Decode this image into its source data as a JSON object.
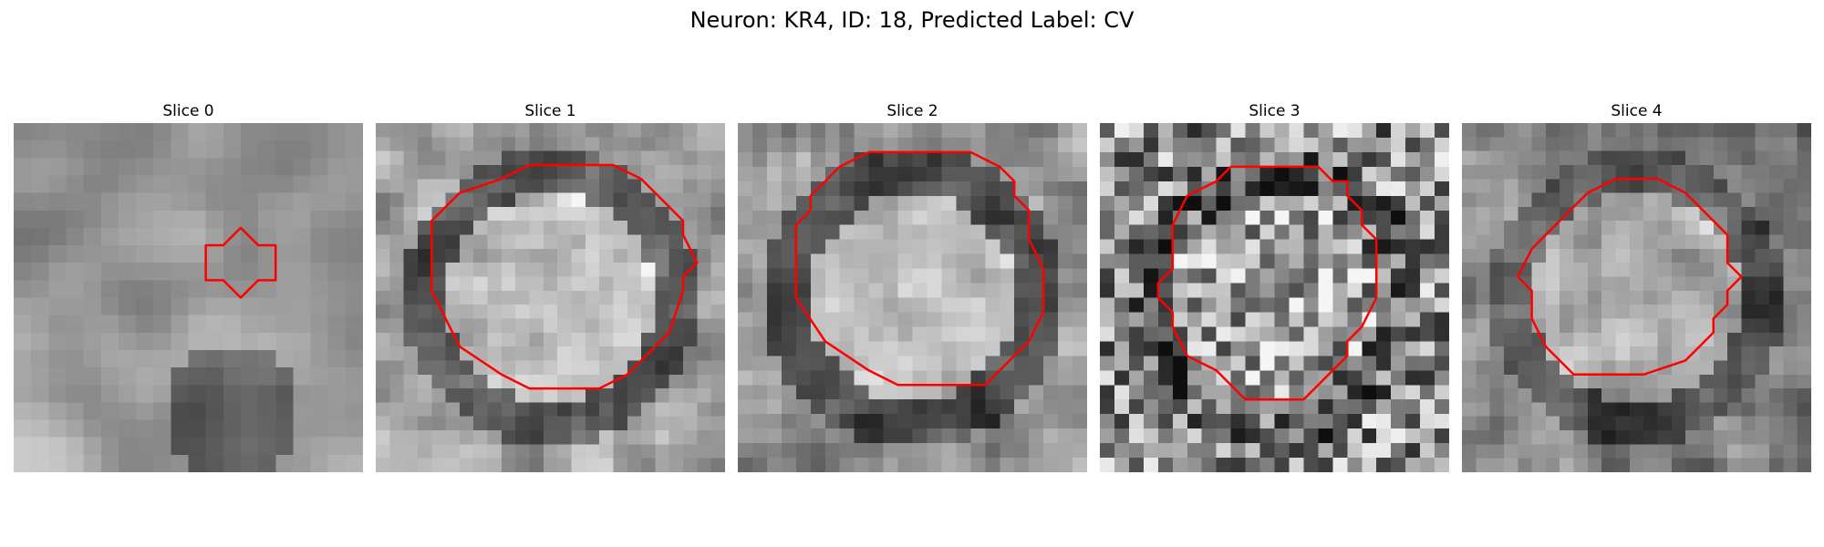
{
  "figure": {
    "title": "Neuron: KR4, ID: 18, Predicted Label: CV",
    "contour_color": "#ff0000",
    "panels": [
      {
        "title": "Slice 0",
        "contour": [
          [
            12,
            7
          ],
          [
            13,
            6
          ],
          [
            14,
            7
          ],
          [
            15,
            7
          ],
          [
            15,
            9
          ],
          [
            14,
            9
          ],
          [
            13,
            10
          ],
          [
            12,
            9
          ],
          [
            11,
            9
          ],
          [
            11,
            7
          ]
        ]
      },
      {
        "title": "Slice 1",
        "contour": [
          [
            11,
            3
          ],
          [
            17,
            3
          ],
          [
            19,
            4
          ],
          [
            21,
            6
          ],
          [
            22,
            7
          ],
          [
            22,
            8
          ],
          [
            23,
            10
          ],
          [
            22,
            11
          ],
          [
            22,
            12
          ],
          [
            21,
            15
          ],
          [
            20,
            16
          ],
          [
            18,
            18
          ],
          [
            16,
            19
          ],
          [
            14,
            19
          ],
          [
            11,
            19
          ],
          [
            9,
            18
          ],
          [
            6,
            16
          ],
          [
            5,
            14
          ],
          [
            4,
            12
          ],
          [
            4,
            10
          ],
          [
            4,
            7
          ],
          [
            6,
            5
          ],
          [
            9,
            4
          ]
        ]
      },
      {
        "title": "Slice 2",
        "contour": [
          [
            9,
            2
          ],
          [
            16,
            2
          ],
          [
            18,
            3
          ],
          [
            19,
            4
          ],
          [
            19,
            5
          ],
          [
            20,
            6
          ],
          [
            20,
            8
          ],
          [
            21,
            10
          ],
          [
            21,
            13
          ],
          [
            20,
            15
          ],
          [
            18,
            17
          ],
          [
            17,
            18
          ],
          [
            11,
            18
          ],
          [
            9,
            17
          ],
          [
            6,
            15
          ],
          [
            4,
            12
          ],
          [
            4,
            9
          ],
          [
            4,
            7
          ],
          [
            5,
            6
          ],
          [
            5,
            5
          ],
          [
            6,
            4
          ],
          [
            7,
            3
          ]
        ]
      },
      {
        "title": "Slice 3",
        "contour": [
          [
            9,
            3
          ],
          [
            15,
            3
          ],
          [
            16,
            4
          ],
          [
            17,
            4
          ],
          [
            17,
            5
          ],
          [
            18,
            6
          ],
          [
            18,
            7
          ],
          [
            19,
            8
          ],
          [
            19,
            12
          ],
          [
            18,
            14
          ],
          [
            17,
            15
          ],
          [
            17,
            16
          ],
          [
            16,
            17
          ],
          [
            15,
            18
          ],
          [
            14,
            19
          ],
          [
            10,
            19
          ],
          [
            8,
            17
          ],
          [
            6,
            16
          ],
          [
            5,
            14
          ],
          [
            5,
            13
          ],
          [
            4,
            12
          ],
          [
            4,
            11
          ],
          [
            5,
            10
          ],
          [
            5,
            7
          ],
          [
            6,
            5
          ],
          [
            8,
            4
          ]
        ]
      },
      {
        "title": "Slice 4",
        "contour": [
          [
            11,
            4
          ],
          [
            12,
            4
          ],
          [
            14,
            4
          ],
          [
            16,
            5
          ],
          [
            17,
            6
          ],
          [
            19,
            8
          ],
          [
            19,
            10
          ],
          [
            20,
            11
          ],
          [
            19,
            12
          ],
          [
            19,
            13
          ],
          [
            18,
            14
          ],
          [
            18,
            15
          ],
          [
            17,
            16
          ],
          [
            16,
            17
          ],
          [
            13,
            18
          ],
          [
            11,
            18
          ],
          [
            8,
            18
          ],
          [
            7,
            17
          ],
          [
            6,
            16
          ],
          [
            5,
            14
          ],
          [
            5,
            12
          ],
          [
            4,
            11
          ],
          [
            5,
            9
          ],
          [
            6,
            8
          ],
          [
            7,
            7
          ],
          [
            8,
            6
          ],
          [
            9,
            5
          ]
        ]
      }
    ]
  }
}
